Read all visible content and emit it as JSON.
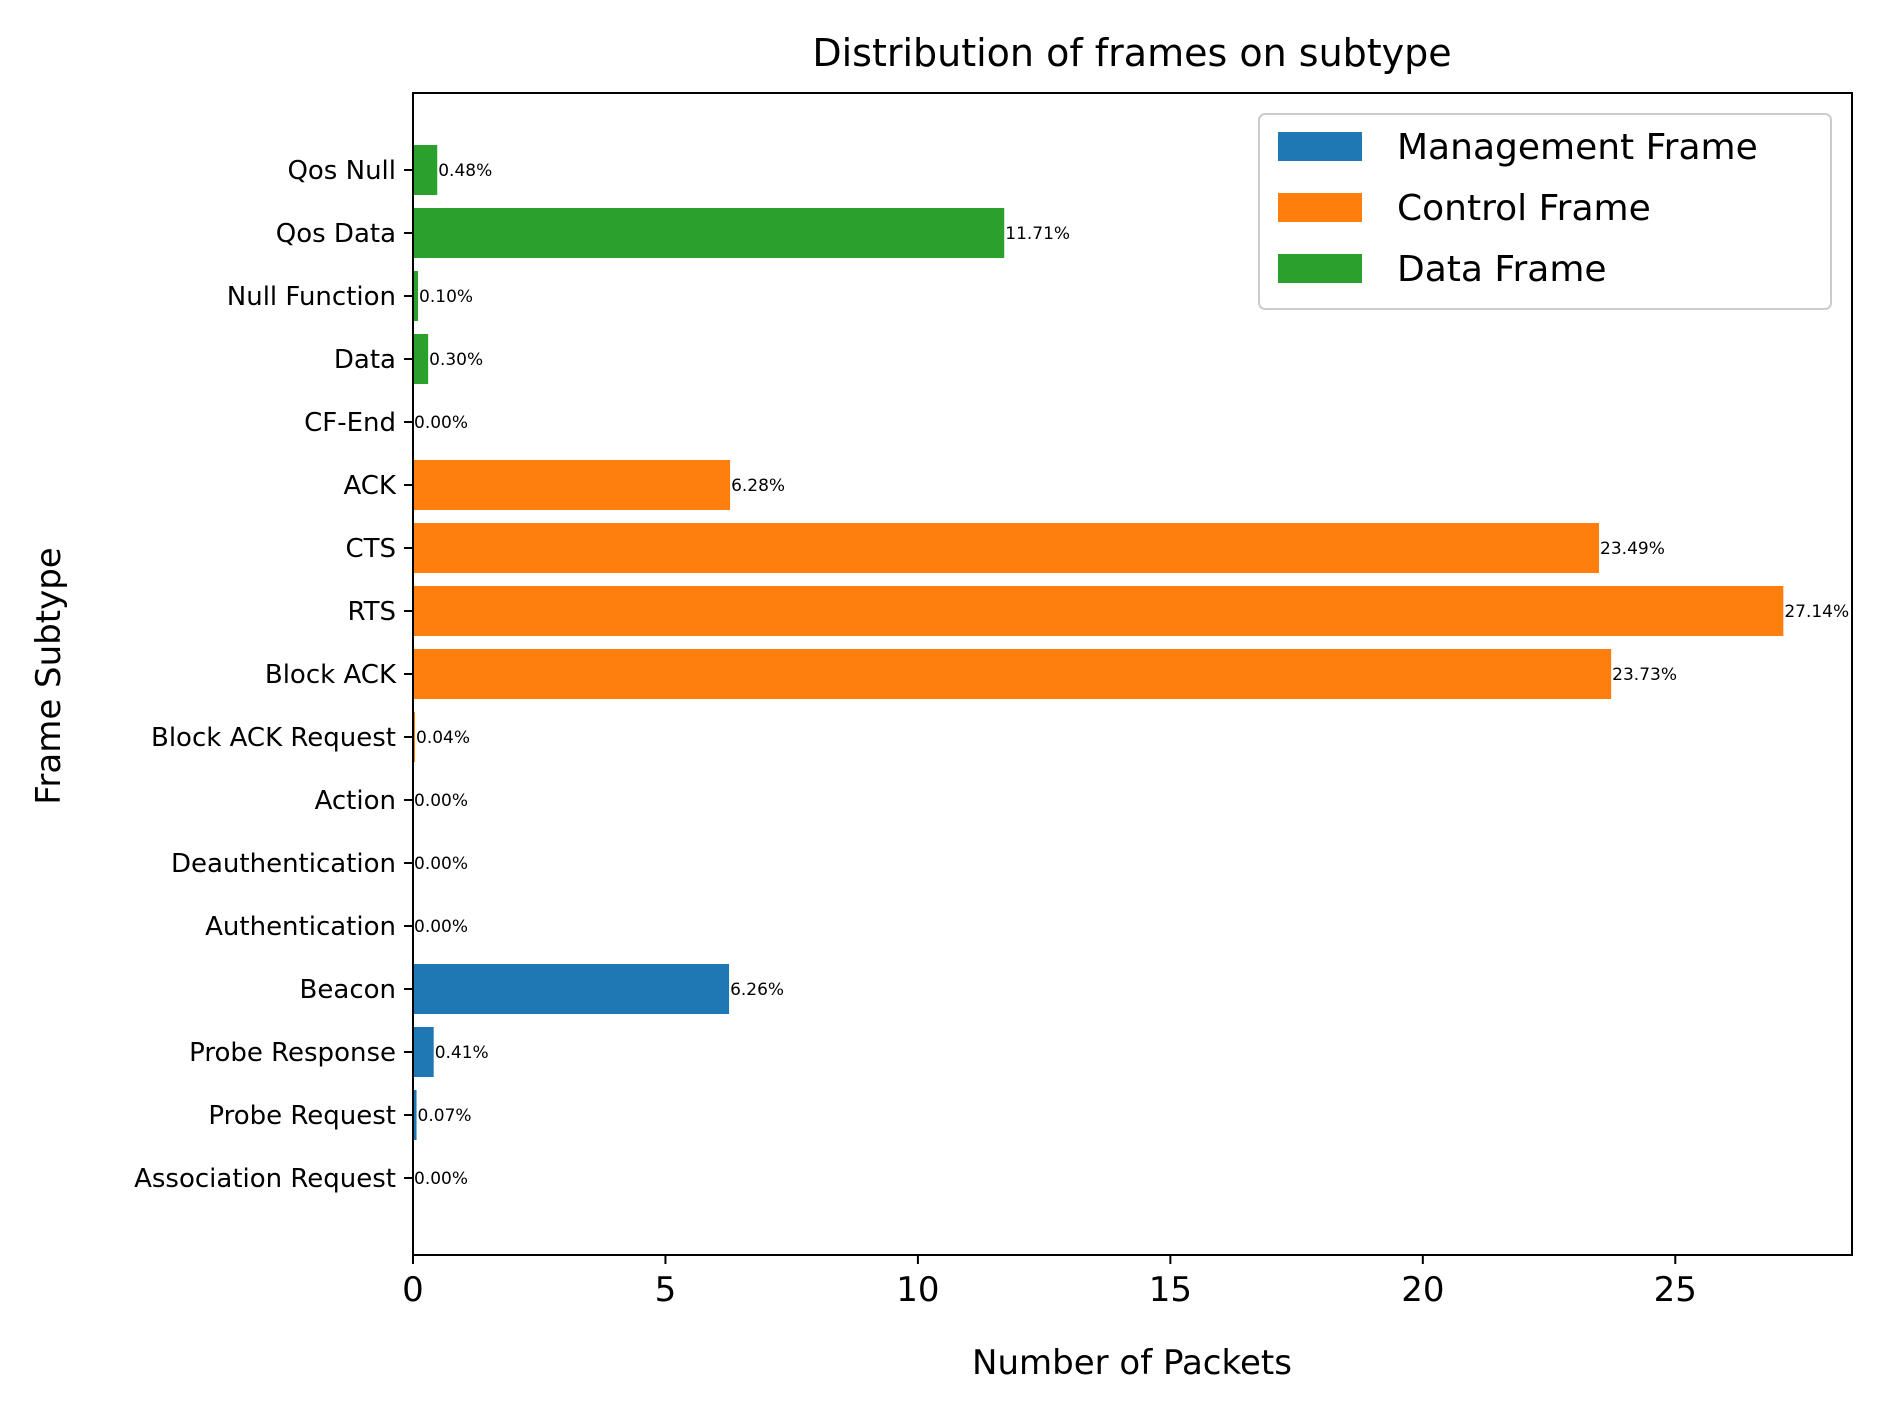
{
  "chart_data": {
    "type": "bar",
    "orientation": "horizontal",
    "title": "Distribution of frames on subtype",
    "xlabel": "Number of Packets",
    "ylabel": "Frame Subtype",
    "xlim": [
      0,
      28.5
    ],
    "xticks": [
      0,
      5,
      10,
      15,
      20,
      25
    ],
    "grid": false,
    "legend_position": "top-right",
    "legend": [
      {
        "name": "Management Frame",
        "color": "#1f77b4"
      },
      {
        "name": "Control Frame",
        "color": "#ff7f0e"
      },
      {
        "name": "Data Frame",
        "color": "#2ca02c"
      }
    ],
    "categories": [
      "Association Request",
      "Probe Request",
      "Probe Response",
      "Beacon",
      "Authentication",
      "Deauthentication",
      "Action",
      "Block ACK Request",
      "Block ACK",
      "RTS",
      "CTS",
      "ACK",
      "CF-End",
      "Data",
      "Null Function",
      "Qos Data",
      "Qos Null"
    ],
    "values": [
      0.0,
      0.07,
      0.41,
      6.26,
      0.0,
      0.0,
      0.0,
      0.04,
      23.73,
      27.14,
      23.49,
      6.28,
      0.0,
      0.3,
      0.1,
      11.71,
      0.48
    ],
    "labels": [
      "0.00%",
      "0.07%",
      "0.41%",
      "6.26%",
      "0.00%",
      "0.00%",
      "0.00%",
      "0.04%",
      "23.73%",
      "27.14%",
      "23.49%",
      "6.28%",
      "0.00%",
      "0.30%",
      "0.10%",
      "11.71%",
      "0.48%"
    ],
    "groups": [
      0,
      0,
      0,
      0,
      0,
      0,
      0,
      1,
      1,
      1,
      1,
      1,
      1,
      2,
      2,
      2,
      2
    ]
  }
}
